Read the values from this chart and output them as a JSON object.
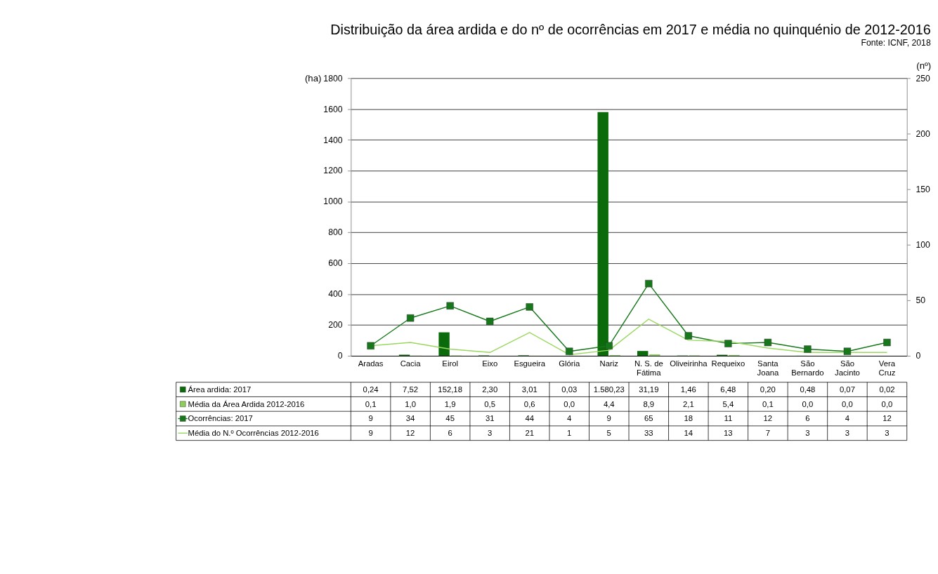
{
  "chart_data": {
    "type": "bar",
    "title": "Distribuição da área ardida e do nº de ocorrências em 2017 e média no quinquénio de 2012-2016",
    "subtitle": "Fonte: ICNF, 2018",
    "ylabel": "(ha)",
    "y2label": "(nº)",
    "categories": [
      "Aradas",
      "Cacia",
      "Eirol",
      "Eixo",
      "Esgueira",
      "Glória",
      "Nariz",
      "N. S. de Fátima",
      "Oliveirinha",
      "Requeixo",
      "Santa Joana",
      "São Bernardo",
      "São Jacinto",
      "Vera Cruz"
    ],
    "series": [
      {
        "name": "Área ardida: 2017",
        "color": "#0b6b0b",
        "values": [
          0.24,
          7.52,
          152.18,
          2.3,
          3.01,
          0.03,
          1580.23,
          31.19,
          1.46,
          6.48,
          0.2,
          0.48,
          0.07,
          0.02
        ],
        "value_labels": [
          "0,24",
          "7,52",
          "152,18",
          "2,30",
          "3,01",
          "0,03",
          "1.580,23",
          "31,19",
          "1,46",
          "6,48",
          "0,20",
          "0,48",
          "0,07",
          "0,02"
        ]
      },
      {
        "name": "Média da Área  Ardida 2012-2016",
        "color": "#8fce5a",
        "values": [
          0.1,
          1.0,
          1.9,
          0.5,
          0.6,
          0.0,
          4.4,
          8.9,
          2.1,
          5.4,
          0.1,
          0.0,
          0.0,
          0.0
        ],
        "value_labels": [
          "0,1",
          "1,0",
          "1,9",
          "0,5",
          "0,6",
          "0,0",
          "4,4",
          "8,9",
          "2,1",
          "5,4",
          "0,1",
          "0,0",
          "0,0",
          "0,0"
        ]
      },
      {
        "name": "Ocorrências: 2017",
        "type": "line",
        "axis": "y2",
        "marker": "square",
        "color": "#16781a",
        "values": [
          9,
          34,
          45,
          31,
          44,
          4,
          9,
          65,
          18,
          11,
          12,
          6,
          4,
          12
        ],
        "value_labels": [
          "9",
          "34",
          "45",
          "31",
          "44",
          "4",
          "9",
          "65",
          "18",
          "11",
          "12",
          "6",
          "4",
          "12"
        ]
      },
      {
        "name": "Média do N.º Ocorrências 2012-2016",
        "type": "line",
        "axis": "y2",
        "marker": "none",
        "color": "#9ad860",
        "values": [
          9,
          12,
          6,
          3,
          21,
          1,
          5,
          33,
          14,
          13,
          7,
          3,
          3,
          3
        ],
        "value_labels": [
          "9",
          "12",
          "6",
          "3",
          "21",
          "1",
          "5",
          "33",
          "14",
          "13",
          "7",
          "3",
          "3",
          "3"
        ]
      }
    ],
    "ylim": [
      0,
      1800
    ],
    "yticks": [
      0,
      200,
      400,
      600,
      800,
      1000,
      1200,
      1400,
      1600,
      1800
    ],
    "y2lim": [
      0,
      250
    ],
    "y2ticks": [
      0,
      50,
      100,
      150,
      200,
      250
    ],
    "grid": "y",
    "legend": "bottom",
    "line_style": "solid"
  }
}
